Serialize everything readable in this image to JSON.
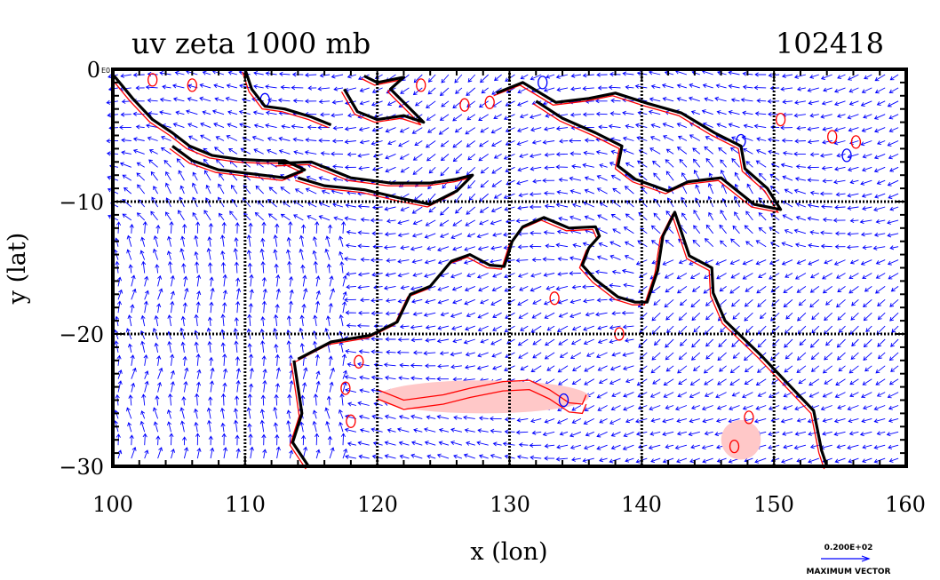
{
  "title_left": "uv zeta 1000 mb",
  "title_right": "102418",
  "x_axis": {
    "label": "x (lon)",
    "ticks": [
      100,
      110,
      120,
      130,
      140,
      150,
      160
    ],
    "tick_labels": [
      "100",
      "110",
      "120",
      "130",
      "140",
      "150",
      "160"
    ]
  },
  "y_axis": {
    "label": "y (lat)",
    "ticks": [
      0,
      -10,
      -20,
      -30
    ],
    "tick_labels": [
      "0",
      "−10",
      "−20",
      "−30"
    ]
  },
  "corner_label": "E0",
  "vector_key": {
    "value": "0.200E+02",
    "caption": "MAXIMUM VECTOR"
  },
  "colors": {
    "vectors": "#0000ff",
    "positive_contour": "#ff0000",
    "negative_contour": "#0000ff",
    "coastline": "#000000",
    "positive_fill": "#ffc8c8"
  },
  "chart_data": {
    "type": "map",
    "region": {
      "lon": [
        100,
        160
      ],
      "lat": [
        -30,
        0
      ]
    },
    "grid_lines_lon": [
      110,
      120,
      130,
      140,
      150
    ],
    "grid_lines_lat": [
      -10,
      -20
    ],
    "coastline_lonlat": [
      [
        [
          100.1,
          -0.5
        ],
        [
          101.5,
          -2.2
        ],
        [
          103,
          -3.8
        ],
        [
          104.5,
          -4.8
        ],
        [
          105.8,
          -5.8
        ],
        [
          107.5,
          -6.5
        ],
        [
          109.5,
          -6.8
        ],
        [
          111.5,
          -6.9
        ],
        [
          113,
          -6.9
        ],
        [
          114.5,
          -7.6
        ],
        [
          113,
          -8.2
        ],
        [
          110.5,
          -7.9
        ],
        [
          108,
          -7.6
        ],
        [
          106,
          -6.9
        ],
        [
          104.5,
          -5.8
        ]
      ],
      [
        [
          112.5,
          -7.1
        ],
        [
          115,
          -7.0
        ],
        [
          118,
          -8.2
        ],
        [
          121,
          -8.6
        ],
        [
          124,
          -8.6
        ],
        [
          126,
          -8.3
        ],
        [
          127.2,
          -8.0
        ],
        [
          126,
          -9.2
        ],
        [
          124,
          -10.2
        ],
        [
          122,
          -9.8
        ],
        [
          119,
          -9.1
        ],
        [
          116,
          -8.8
        ],
        [
          114,
          -8.2
        ]
      ],
      [
        [
          117.5,
          -1.5
        ],
        [
          118.5,
          -3.2
        ],
        [
          120,
          -3.8
        ],
        [
          122,
          -3.5
        ],
        [
          123.5,
          -4.0
        ],
        [
          121,
          -1.5
        ],
        [
          122,
          -0.6
        ],
        [
          120,
          -1.0
        ],
        [
          119,
          -0.5
        ]
      ],
      [
        [
          116.5,
          -4.2
        ],
        [
          115,
          -3.6
        ],
        [
          113,
          -3.0
        ],
        [
          111.5,
          -2.8
        ],
        [
          110.5,
          -1.5
        ],
        [
          110.0,
          0.0
        ]
      ],
      [
        [
          129,
          -1.8
        ],
        [
          131,
          -1.0
        ],
        [
          133.5,
          -2.5
        ],
        [
          136,
          -2.2
        ],
        [
          138,
          -1.8
        ],
        [
          140.5,
          -2.6
        ],
        [
          143,
          -3.3
        ],
        [
          145.5,
          -4.8
        ],
        [
          147.5,
          -5.8
        ],
        [
          147.8,
          -7.5
        ],
        [
          149.5,
          -9.0
        ],
        [
          150.5,
          -10.6
        ],
        [
          148.5,
          -10.2
        ],
        [
          146,
          -8.2
        ],
        [
          143.5,
          -8.5
        ],
        [
          142,
          -9.2
        ],
        [
          139.5,
          -8.3
        ],
        [
          138.2,
          -7.3
        ],
        [
          138.5,
          -5.8
        ],
        [
          136.5,
          -4.8
        ],
        [
          134,
          -3.7
        ],
        [
          132,
          -2.4
        ]
      ],
      [
        [
          113.7,
          -22
        ],
        [
          114.3,
          -26
        ],
        [
          113.6,
          -28.2
        ],
        [
          114.8,
          -30
        ]
      ],
      [
        [
          114,
          -21.9
        ],
        [
          116.5,
          -20.6
        ],
        [
          119.5,
          -20.1
        ],
        [
          121.5,
          -19.1
        ],
        [
          122.5,
          -17.0
        ],
        [
          124,
          -16.4
        ],
        [
          125.6,
          -14.5
        ],
        [
          127,
          -14.0
        ],
        [
          128.5,
          -14.8
        ],
        [
          129.6,
          -14.9
        ],
        [
          130.2,
          -13.0
        ],
        [
          131,
          -11.9
        ],
        [
          132.6,
          -11.2
        ],
        [
          134.5,
          -12.0
        ],
        [
          136.5,
          -11.9
        ],
        [
          136.8,
          -12.6
        ],
        [
          136,
          -13.5
        ],
        [
          135.5,
          -14.8
        ],
        [
          136.5,
          -15.9
        ],
        [
          138.2,
          -17.2
        ],
        [
          139.5,
          -17.6
        ],
        [
          140.4,
          -17.6
        ],
        [
          141.2,
          -15.2
        ],
        [
          141.6,
          -12.6
        ],
        [
          142.5,
          -10.8
        ],
        [
          143.6,
          -14.1
        ],
        [
          145.3,
          -15.0
        ],
        [
          145.4,
          -16.9
        ],
        [
          146.3,
          -19.0
        ],
        [
          149,
          -21.6
        ],
        [
          150.8,
          -23.5
        ],
        [
          153,
          -25.8
        ],
        [
          153.6,
          -28.8
        ],
        [
          154,
          -30
        ]
      ]
    ],
    "positive_vorticity_regions": [
      {
        "lon": [
          120,
          136
        ],
        "lat": [
          -26,
          -23.5
        ]
      },
      {
        "lon": [
          146,
          149
        ],
        "lat": [
          -29.5,
          -26.5
        ]
      }
    ]
  }
}
